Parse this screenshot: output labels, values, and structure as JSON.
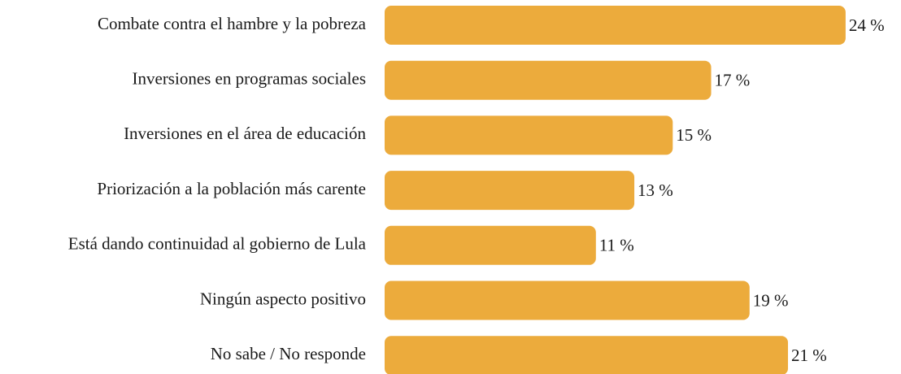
{
  "chart_data": {
    "type": "barh",
    "categories": [
      "Combate contra el hambre y la pobreza",
      "Inversiones en programas sociales",
      "Inversiones en el área de educación",
      "Priorización a la población más carente",
      "Está dando continuidad al gobierno de Lula",
      "Ningún aspecto positivo",
      "No sabe / No responde"
    ],
    "values": [
      24,
      17,
      15,
      13,
      11,
      19,
      21
    ],
    "value_labels": [
      "24 %",
      "17 %",
      "15 %",
      "13 %",
      "11 %",
      "19 %",
      "21 %"
    ],
    "color": "#ecab3c"
  }
}
